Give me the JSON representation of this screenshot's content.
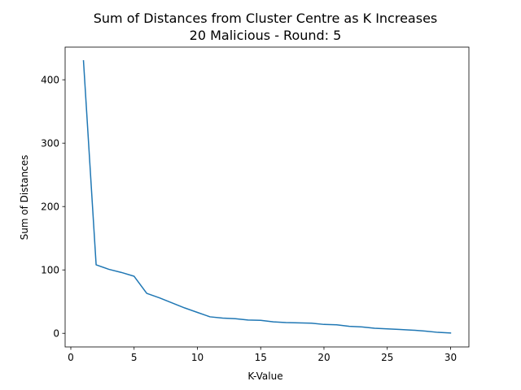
{
  "chart_data": {
    "type": "line",
    "title": "Sum of Distances from Cluster Centre as K Increases",
    "subtitle": "20 Malicious - Round: 5",
    "xlabel": "K-Value",
    "ylabel": "Sum of Distances",
    "xlim": [
      -0.45,
      31.45
    ],
    "ylim": [
      -21.5,
      451.5
    ],
    "xticks": [
      0,
      5,
      10,
      15,
      20,
      25,
      30
    ],
    "yticks": [
      0,
      100,
      200,
      300,
      400
    ],
    "grid": false,
    "line_color": "#1f77b4",
    "series": [
      {
        "x": [
          1,
          2,
          3,
          4,
          5,
          6,
          7,
          8,
          9,
          10,
          11,
          12,
          13,
          14,
          15,
          16,
          17,
          18,
          19,
          20,
          21,
          22,
          23,
          24,
          25,
          26,
          27,
          28,
          29,
          30
        ],
        "values": [
          430,
          108,
          101,
          96,
          90,
          63,
          56,
          48,
          40,
          33,
          26,
          24,
          23,
          21,
          20.5,
          18,
          17,
          16.5,
          16,
          14,
          13.5,
          11,
          10,
          8,
          7,
          6,
          5,
          3.5,
          1.5,
          0.5
        ]
      }
    ]
  }
}
